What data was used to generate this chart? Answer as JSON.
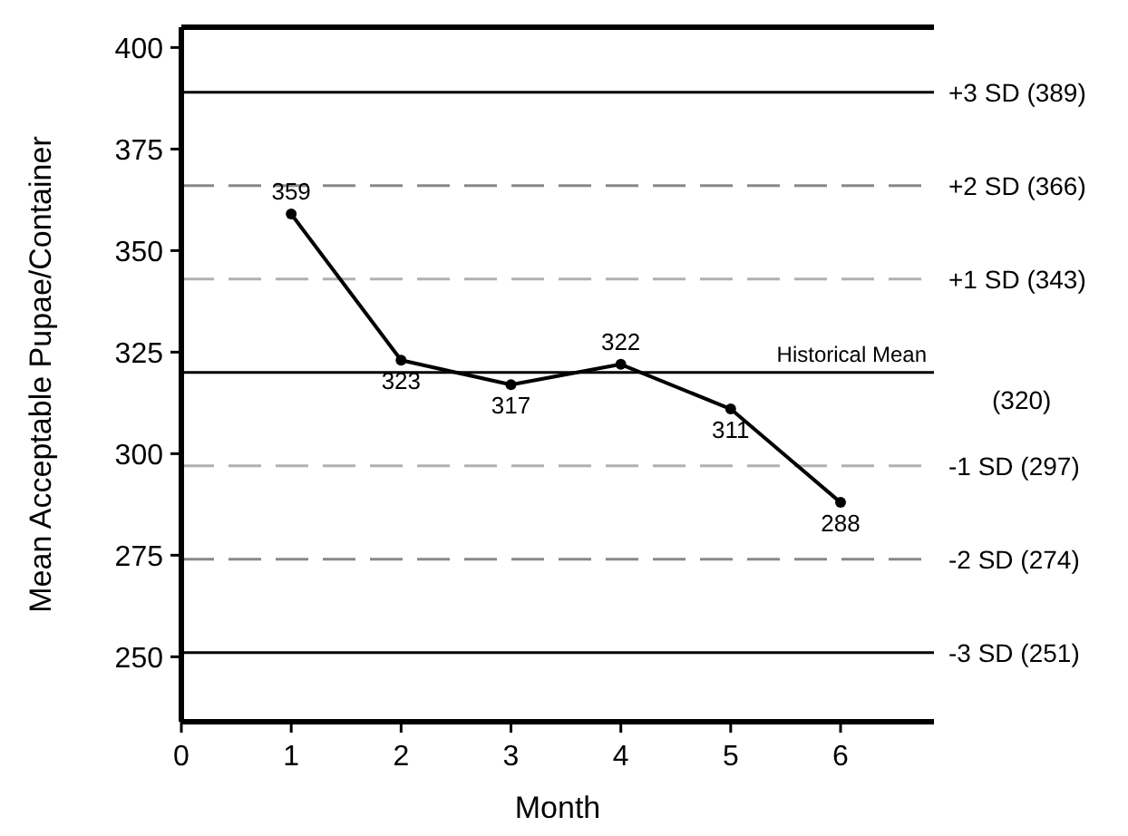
{
  "chart_data": {
    "type": "line",
    "xlabel": "Month",
    "ylabel": "Mean Acceptable Pupae/Container",
    "x": [
      1,
      2,
      3,
      4,
      5,
      6
    ],
    "series": [
      {
        "color": "#000000",
        "values": [
          359,
          323,
          317,
          322,
          311,
          288
        ]
      }
    ],
    "data_labels": true,
    "marker": "circle",
    "line_style": "solid",
    "grid": false,
    "xlim": [
      0,
      6.85
    ],
    "xticks": [
      0,
      1,
      2,
      3,
      4,
      5,
      6
    ],
    "ylim": [
      234,
      405
    ],
    "yticks": [
      250,
      275,
      300,
      325,
      350,
      375,
      400
    ],
    "ref_lines": [
      {
        "axis": "y",
        "value": 389,
        "label": "+3 SD (389)",
        "color": "#000000",
        "line_style": "solid"
      },
      {
        "axis": "y",
        "value": 366,
        "label": "+2 SD (366)",
        "color": "#888888",
        "line_style": "dashed"
      },
      {
        "axis": "y",
        "value": 343,
        "label": "+1 SD (343)",
        "color": "#b0b0b0",
        "line_style": "dashed"
      },
      {
        "axis": "y",
        "value": 320,
        "label": "Historical Mean",
        "color": "#000000",
        "line_style": "solid"
      },
      {
        "axis": "y",
        "value": 297,
        "label": "-1 SD (297)",
        "color": "#b0b0b0",
        "line_style": "dashed"
      },
      {
        "axis": "y",
        "value": 274,
        "label": "-2 SD (274)",
        "color": "#888888",
        "line_style": "dashed"
      },
      {
        "axis": "y",
        "value": 251,
        "label": "-3 SD (251)",
        "color": "#000000",
        "line_style": "solid"
      }
    ],
    "annotations": [
      "(320)"
    ]
  }
}
